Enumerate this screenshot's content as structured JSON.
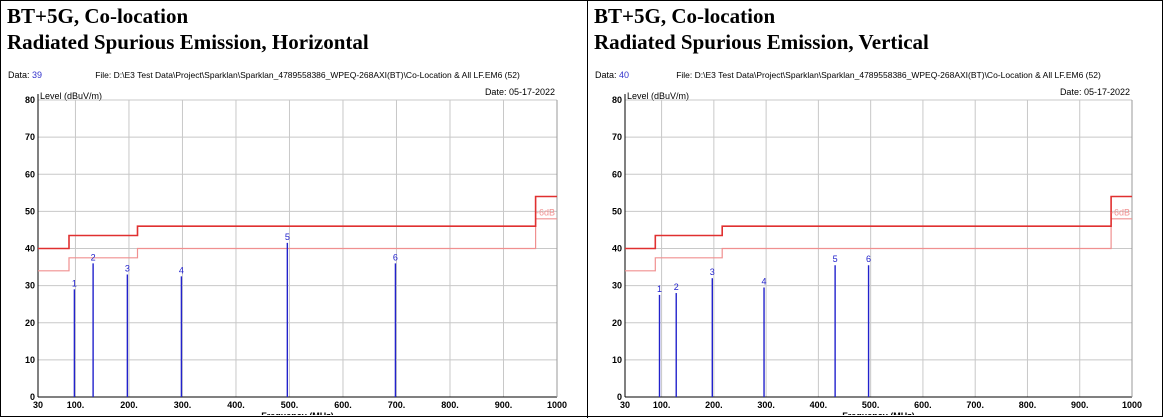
{
  "panels": [
    {
      "title_line1": "BT+5G, Co-location",
      "title_line2": "Radiated Spurious Emission, Horizontal"
    },
    {
      "title_line1": "BT+5G, Co-location",
      "title_line2": "Radiated Spurious Emission, Vertical"
    }
  ],
  "chart_data": [
    {
      "type": "bar",
      "data_label": "Data:",
      "data_number": "39",
      "file_label": "File: D:\\E3 Test Data\\Project\\Sparklan\\Sparklan_4789558386_WPEQ-268AXI(BT)\\Co-Location & All LF.EM6  (52)",
      "date_label": "Date: 05-17-2022",
      "ylabel": "Level (dBuV/m)",
      "xlabel": "Frequency (MHz)",
      "ylim": [
        0,
        80
      ],
      "xlim": [
        30,
        1000
      ],
      "y_ticks": [
        0,
        10,
        20,
        30,
        40,
        50,
        60,
        70,
        80
      ],
      "x_ticks": [
        30,
        100,
        200,
        300,
        400,
        500,
        600,
        700,
        800,
        900,
        1000
      ],
      "x_tick_labels": [
        "30",
        "100.",
        "200.",
        "300.",
        "400.",
        "500.",
        "600.",
        "700.",
        "800.",
        "900.",
        "1000"
      ],
      "limit_line": [
        [
          30,
          40
        ],
        [
          88,
          40
        ],
        [
          88,
          43.5
        ],
        [
          216,
          43.5
        ],
        [
          216,
          46
        ],
        [
          960,
          46
        ],
        [
          960,
          54
        ],
        [
          1000,
          54
        ]
      ],
      "limit_margin_line": [
        [
          30,
          34
        ],
        [
          88,
          34
        ],
        [
          88,
          37.5
        ],
        [
          216,
          37.5
        ],
        [
          216,
          40
        ],
        [
          960,
          40
        ],
        [
          960,
          48
        ],
        [
          1000,
          48
        ]
      ],
      "margin_label": "-6dB",
      "grid": true,
      "series": [
        {
          "x": [
            98,
            133,
            197,
            298,
            496,
            698
          ],
          "values": [
            29,
            36,
            33,
            32.5,
            41.5,
            36
          ],
          "labels": [
            "1",
            "2",
            "3",
            "4",
            "5",
            "6"
          ]
        }
      ]
    },
    {
      "type": "bar",
      "data_label": "Data:",
      "data_number": "40",
      "file_label": "File: D:\\E3 Test Data\\Project\\Sparklan\\Sparklan_4789558386_WPEQ-268AXI(BT)\\Co-Location & All LF.EM6  (52)",
      "date_label": "Date: 05-17-2022",
      "ylabel": "Level (dBuV/m)",
      "xlabel": "Frequency (MHz)",
      "ylim": [
        0,
        80
      ],
      "xlim": [
        30,
        1000
      ],
      "y_ticks": [
        0,
        10,
        20,
        30,
        40,
        50,
        60,
        70,
        80
      ],
      "x_ticks": [
        30,
        100,
        200,
        300,
        400,
        500,
        600,
        700,
        800,
        900,
        1000
      ],
      "x_tick_labels": [
        "30",
        "100.",
        "200.",
        "300.",
        "400.",
        "500.",
        "600.",
        "700.",
        "800.",
        "900.",
        "1000"
      ],
      "limit_line": [
        [
          30,
          40
        ],
        [
          88,
          40
        ],
        [
          88,
          43.5
        ],
        [
          216,
          43.5
        ],
        [
          216,
          46
        ],
        [
          960,
          46
        ],
        [
          960,
          54
        ],
        [
          1000,
          54
        ]
      ],
      "limit_margin_line": [
        [
          30,
          34
        ],
        [
          88,
          34
        ],
        [
          88,
          37.5
        ],
        [
          216,
          37.5
        ],
        [
          216,
          40
        ],
        [
          960,
          40
        ],
        [
          960,
          48
        ],
        [
          1000,
          48
        ]
      ],
      "margin_label": "-6dB",
      "grid": true,
      "series": [
        {
          "x": [
            96,
            128,
            197,
            296,
            432,
            496
          ],
          "values": [
            27.5,
            28,
            32,
            29.5,
            35.5,
            35.5
          ],
          "labels": [
            "1",
            "2",
            "3",
            "4",
            "5",
            "6"
          ]
        }
      ]
    }
  ],
  "colors": {
    "limit": "#e03030",
    "limit_margin": "#f09090",
    "marker": "#2222cc",
    "grid": "#c8c8c8",
    "data_number": "#3333cc"
  }
}
